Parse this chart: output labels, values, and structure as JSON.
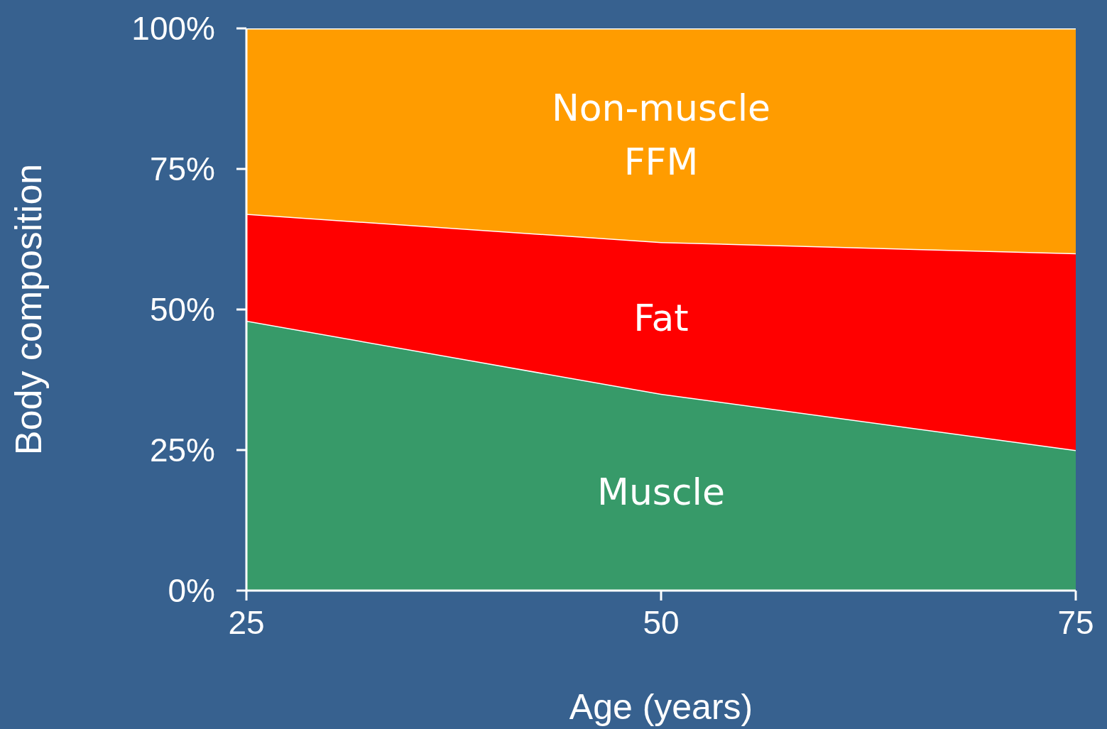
{
  "chart_data": {
    "type": "area",
    "stacked": true,
    "xlabel": "Age (years)",
    "ylabel": "Body composition",
    "x": [
      25,
      50,
      75
    ],
    "series": [
      {
        "name": "Muscle",
        "color": "#379a69",
        "values": [
          48,
          35,
          25
        ]
      },
      {
        "name": "Fat",
        "color": "#ff0000",
        "values": [
          19,
          27,
          35
        ]
      },
      {
        "name": "Non-muscle FFM",
        "color": "#ff9c00",
        "values": [
          33,
          38,
          40
        ]
      }
    ],
    "xlim": [
      25,
      75
    ],
    "xticks": [
      25,
      50,
      75
    ],
    "ylim": [
      0,
      100
    ],
    "yticks": [
      {
        "value": 0,
        "label": "0%"
      },
      {
        "value": 25,
        "label": "25%"
      },
      {
        "value": 50,
        "label": "50%"
      },
      {
        "value": 75,
        "label": "75%"
      },
      {
        "value": 100,
        "label": "100%"
      }
    ],
    "legend": false,
    "grid": false
  }
}
